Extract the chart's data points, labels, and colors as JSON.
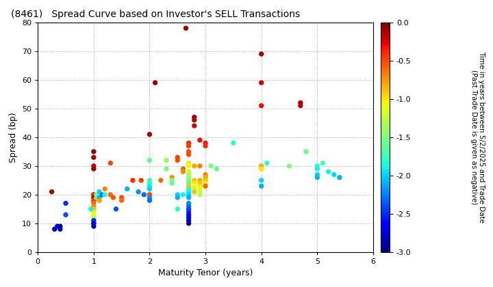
{
  "title": "(8461)   Spread Curve based on Investor's SELL Transactions",
  "xlabel": "Maturity Tenor (years)",
  "ylabel": "Spread (bp)",
  "colorbar_label": "Time in years between 5/2/2025 and Trade Date\n(Past Trade Date is given as negative)",
  "xlim": [
    0,
    6
  ],
  "ylim": [
    0,
    80
  ],
  "xticks": [
    0,
    1,
    2,
    3,
    4,
    5,
    6
  ],
  "yticks": [
    0,
    10,
    20,
    30,
    40,
    50,
    60,
    70,
    80
  ],
  "cmap_range": [
    -3.0,
    0.0
  ],
  "cbar_ticks": [
    0.0,
    -0.5,
    -1.0,
    -1.5,
    -2.0,
    -2.5,
    -3.0
  ],
  "points": [
    [
      0.3,
      8,
      -2.8
    ],
    [
      0.35,
      9,
      -2.7
    ],
    [
      0.5,
      17,
      -2.5
    ],
    [
      0.5,
      13,
      -2.4
    ],
    [
      0.4,
      9,
      -3.0
    ],
    [
      0.4,
      8,
      -2.9
    ],
    [
      0.25,
      21,
      -0.1
    ],
    [
      1.0,
      35,
      -0.05
    ],
    [
      1.0,
      33,
      -0.1
    ],
    [
      1.0,
      30,
      -0.2
    ],
    [
      1.0,
      29,
      -0.05
    ],
    [
      1.0,
      20,
      -0.3
    ],
    [
      1.0,
      20,
      -0.4
    ],
    [
      1.0,
      19,
      -0.15
    ],
    [
      1.0,
      18,
      -0.25
    ],
    [
      1.0,
      18,
      -0.5
    ],
    [
      1.0,
      17,
      -0.6
    ],
    [
      1.0,
      16,
      -0.7
    ],
    [
      1.0,
      15,
      -0.8
    ],
    [
      1.0,
      15,
      -0.9
    ],
    [
      1.0,
      14,
      -1.0
    ],
    [
      1.0,
      13,
      -1.1
    ],
    [
      1.0,
      12,
      -1.2
    ],
    [
      1.0,
      12,
      -1.3
    ],
    [
      1.0,
      11,
      -2.5
    ],
    [
      1.0,
      10,
      -2.6
    ],
    [
      1.0,
      10,
      -2.7
    ],
    [
      1.0,
      9,
      -2.8
    ],
    [
      1.05,
      20,
      -1.5
    ],
    [
      1.05,
      19,
      -1.6
    ],
    [
      1.1,
      21,
      -2.0
    ],
    [
      1.1,
      19,
      -2.1
    ],
    [
      1.1,
      18,
      -2.2
    ],
    [
      1.1,
      18,
      -0.8
    ],
    [
      1.15,
      20,
      -2.3
    ],
    [
      1.2,
      22,
      -0.7
    ],
    [
      1.2,
      20,
      -1.8
    ],
    [
      0.95,
      15,
      -1.9
    ],
    [
      1.3,
      31,
      -0.5
    ],
    [
      1.3,
      20,
      -0.6
    ],
    [
      1.35,
      19,
      -0.55
    ],
    [
      1.4,
      15,
      -2.4
    ],
    [
      1.5,
      19,
      -0.5
    ],
    [
      1.5,
      18,
      -0.6
    ],
    [
      1.6,
      22,
      -2.1
    ],
    [
      1.7,
      25,
      -0.4
    ],
    [
      1.8,
      21,
      -2.2
    ],
    [
      1.85,
      25,
      -0.45
    ],
    [
      1.9,
      20,
      -2.3
    ],
    [
      2.0,
      41,
      -0.1
    ],
    [
      2.0,
      32,
      -1.5
    ],
    [
      2.0,
      32,
      -1.6
    ],
    [
      2.0,
      25,
      -1.7
    ],
    [
      2.0,
      24,
      -1.8
    ],
    [
      2.0,
      23,
      -1.9
    ],
    [
      2.0,
      22,
      -2.0
    ],
    [
      2.0,
      20,
      -2.1
    ],
    [
      2.0,
      20,
      -0.5
    ],
    [
      2.0,
      19,
      -2.2
    ],
    [
      2.0,
      18,
      -2.3
    ],
    [
      2.1,
      59,
      -0.05
    ],
    [
      2.2,
      25,
      -0.6
    ],
    [
      2.3,
      32,
      -1.3
    ],
    [
      2.3,
      32,
      -1.4
    ],
    [
      2.3,
      29,
      -1.5
    ],
    [
      2.4,
      26,
      -0.7
    ],
    [
      2.4,
      25,
      -1.4
    ],
    [
      2.4,
      25,
      -1.5
    ],
    [
      2.4,
      24,
      -1.6
    ],
    [
      2.5,
      33,
      -0.5
    ],
    [
      2.5,
      32,
      -0.5
    ],
    [
      2.5,
      20,
      -2.0
    ],
    [
      2.5,
      19,
      -2.1
    ],
    [
      2.5,
      15,
      -1.8
    ],
    [
      2.6,
      29,
      -0.6
    ],
    [
      2.6,
      28,
      -0.7
    ],
    [
      2.6,
      20,
      -1.9
    ],
    [
      2.65,
      78,
      -0.05
    ],
    [
      2.7,
      38,
      -0.4
    ],
    [
      2.7,
      37,
      -0.45
    ],
    [
      2.7,
      35,
      -0.5
    ],
    [
      2.7,
      34,
      -0.5
    ],
    [
      2.7,
      31,
      -1.0
    ],
    [
      2.7,
      30,
      -1.1
    ],
    [
      2.7,
      28,
      -1.2
    ],
    [
      2.7,
      27,
      -1.3
    ],
    [
      2.7,
      26,
      -1.4
    ],
    [
      2.7,
      25,
      -1.5
    ],
    [
      2.7,
      24,
      -1.6
    ],
    [
      2.7,
      23,
      -0.9
    ],
    [
      2.7,
      22,
      -1.7
    ],
    [
      2.7,
      22,
      -1.8
    ],
    [
      2.7,
      21,
      -1.9
    ],
    [
      2.7,
      20,
      -2.0
    ],
    [
      2.7,
      19,
      -2.1
    ],
    [
      2.7,
      17,
      -2.2
    ],
    [
      2.7,
      16,
      -2.3
    ],
    [
      2.7,
      15,
      -2.4
    ],
    [
      2.7,
      14,
      -2.5
    ],
    [
      2.7,
      13,
      -2.6
    ],
    [
      2.7,
      12,
      -2.7
    ],
    [
      2.7,
      11,
      -2.8
    ],
    [
      2.7,
      10,
      -2.9
    ],
    [
      2.8,
      47,
      -0.1
    ],
    [
      2.8,
      46,
      -0.15
    ],
    [
      2.8,
      44,
      -0.2
    ],
    [
      2.8,
      30,
      -0.8
    ],
    [
      2.8,
      25,
      -0.9
    ],
    [
      2.8,
      24,
      -1.0
    ],
    [
      2.8,
      23,
      -1.1
    ],
    [
      2.8,
      22,
      -1.2
    ],
    [
      2.8,
      21,
      -1.3
    ],
    [
      2.8,
      21,
      -0.9
    ],
    [
      2.9,
      39,
      -0.3
    ],
    [
      2.9,
      30,
      -0.7
    ],
    [
      2.9,
      25,
      -0.8
    ],
    [
      2.9,
      24,
      -0.9
    ],
    [
      2.9,
      23,
      -1.0
    ],
    [
      2.9,
      22,
      -1.1
    ],
    [
      2.9,
      21,
      -1.2
    ],
    [
      2.9,
      20,
      -1.3
    ],
    [
      3.0,
      38,
      -0.35
    ],
    [
      3.0,
      37,
      -0.4
    ],
    [
      3.0,
      27,
      -0.7
    ],
    [
      3.0,
      26,
      -0.8
    ],
    [
      3.0,
      25,
      -0.9
    ],
    [
      3.0,
      24,
      -1.0
    ],
    [
      3.0,
      23,
      -1.1
    ],
    [
      3.0,
      23,
      -0.6
    ],
    [
      3.1,
      30,
      -1.5
    ],
    [
      3.2,
      29,
      -1.6
    ],
    [
      3.5,
      38,
      -1.8
    ],
    [
      4.0,
      69,
      -0.1
    ],
    [
      4.0,
      59,
      -0.2
    ],
    [
      4.0,
      51,
      -0.3
    ],
    [
      4.0,
      30,
      -0.8
    ],
    [
      4.0,
      29,
      -0.9
    ],
    [
      4.0,
      29,
      -1.0
    ],
    [
      4.0,
      25,
      -2.0
    ],
    [
      4.0,
      23,
      -2.1
    ],
    [
      4.1,
      31,
      -1.8
    ],
    [
      4.5,
      30,
      -1.5
    ],
    [
      4.7,
      52,
      -0.1
    ],
    [
      4.7,
      51,
      -0.15
    ],
    [
      4.8,
      35,
      -1.6
    ],
    [
      5.0,
      30,
      -1.8
    ],
    [
      5.0,
      29,
      -1.9
    ],
    [
      5.0,
      27,
      -2.0
    ],
    [
      5.0,
      26,
      -2.1
    ],
    [
      5.1,
      31,
      -1.7
    ],
    [
      5.2,
      28,
      -1.9
    ],
    [
      5.3,
      27,
      -2.0
    ],
    [
      5.4,
      26,
      -2.1
    ]
  ]
}
